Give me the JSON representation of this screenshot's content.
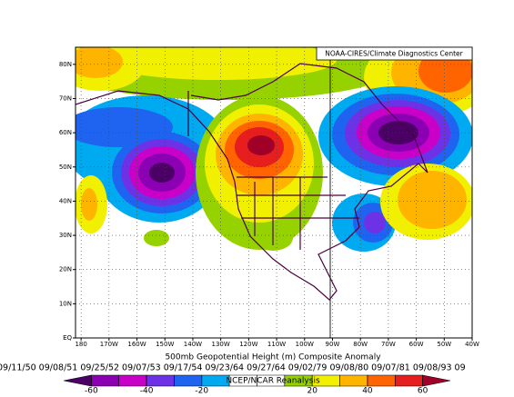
{
  "chart_data": {
    "type": "map",
    "header": "NOAA-CIRES/Climate Diagnostics Center",
    "title": "500mb Geopotential Height (m) Composite Anomaly",
    "dates": "09/11/50 09/08/51 09/25/52 09/07/53 09/17/54 09/23/64 09/27/64 09/02/79 09/08/80 09/07/81 09/08/93 09",
    "source": "NCEP/NCAR Reanalysis",
    "xlim": [
      -182,
      -40
    ],
    "ylim": [
      0,
      85
    ],
    "xticks": [
      {
        "value": -180,
        "label": "180"
      },
      {
        "value": -170,
        "label": "170W"
      },
      {
        "value": -160,
        "label": "160W"
      },
      {
        "value": -150,
        "label": "150W"
      },
      {
        "value": -140,
        "label": "140W"
      },
      {
        "value": -130,
        "label": "130W"
      },
      {
        "value": -120,
        "label": "120W"
      },
      {
        "value": -110,
        "label": "110W"
      },
      {
        "value": -100,
        "label": "100W"
      },
      {
        "value": -90,
        "label": "90W"
      },
      {
        "value": -80,
        "label": "80W"
      },
      {
        "value": -70,
        "label": "70W"
      },
      {
        "value": -60,
        "label": "60W"
      },
      {
        "value": -50,
        "label": "50W"
      },
      {
        "value": -40,
        "label": "40W"
      }
    ],
    "yticks": [
      {
        "value": 0,
        "label": "EQ"
      },
      {
        "value": 10,
        "label": "10N"
      },
      {
        "value": 20,
        "label": "20N"
      },
      {
        "value": 30,
        "label": "30N"
      },
      {
        "value": 40,
        "label": "40N"
      },
      {
        "value": 50,
        "label": "50N"
      },
      {
        "value": 60,
        "label": "60N"
      },
      {
        "value": 70,
        "label": "70N"
      },
      {
        "value": 80,
        "label": "80N"
      }
    ],
    "grid": true,
    "colorbar": {
      "range": [
        -70,
        70
      ],
      "ticks": [
        -60,
        -40,
        -20,
        20,
        40,
        60
      ],
      "colors": [
        "#4b0066",
        "#8c00b4",
        "#c800c8",
        "#6e32e6",
        "#1e64f0",
        "#00aaf0",
        "#ffffff",
        "#ffffff",
        "#96d200",
        "#f0f000",
        "#ffb400",
        "#ff6400",
        "#e61e1e",
        "#a00028"
      ]
    }
  }
}
